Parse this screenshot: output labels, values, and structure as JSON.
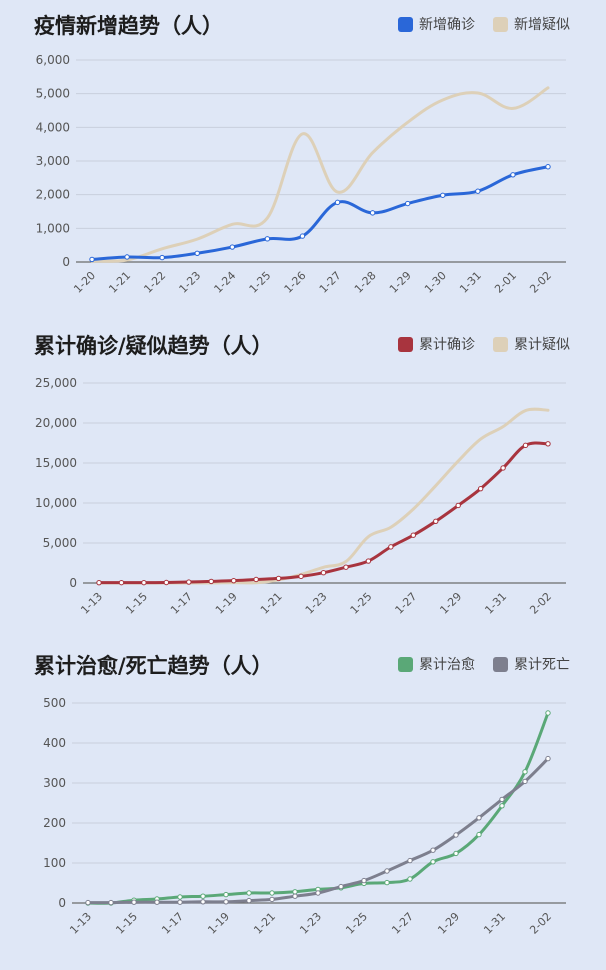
{
  "chart_data": [
    {
      "type": "line",
      "title": "疫情新增趋势（人）",
      "xlabel": "",
      "ylabel": "",
      "ylim": [
        0,
        6000
      ],
      "yticks": [
        0,
        1000,
        2000,
        3000,
        4000,
        5000,
        6000
      ],
      "ytick_labels": [
        "0",
        "1,000",
        "2,000",
        "3,000",
        "4,000",
        "5,000",
        "6,000"
      ],
      "categories": [
        "1-20",
        "1-21",
        "1-22",
        "1-23",
        "1-24",
        "1-25",
        "1-26",
        "1-27",
        "1-28",
        "1-29",
        "1-30",
        "1-31",
        "2-01",
        "2-02"
      ],
      "legend": "top-right",
      "grid": true,
      "series": [
        {
          "name": "新增确诊",
          "color": "#2a67d8",
          "markers": true,
          "values": [
            77,
            149,
            131,
            259,
            444,
            688,
            769,
            1771,
            1459,
            1737,
            1982,
            2102,
            2590,
            2829
          ]
        },
        {
          "name": "新增疑似",
          "color": "#ddd0b8",
          "markers": false,
          "values": [
            27,
            60,
            393,
            680,
            1118,
            1309,
            3806,
            2077,
            3248,
            4148,
            4812,
            5019,
            4562,
            5173
          ]
        }
      ]
    },
    {
      "type": "line",
      "title": "累计确诊/疑似趋势（人）",
      "xlabel": "",
      "ylabel": "",
      "ylim": [
        0,
        25000
      ],
      "yticks": [
        0,
        5000,
        10000,
        15000,
        20000,
        25000
      ],
      "ytick_labels": [
        "0",
        "5,000",
        "10,000",
        "15,000",
        "20,000",
        "25,000"
      ],
      "categories": [
        "1-13",
        "1-14",
        "1-15",
        "1-16",
        "1-17",
        "1-18",
        "1-19",
        "1-20",
        "1-21",
        "1-22",
        "1-23",
        "1-24",
        "1-25",
        "1-26",
        "1-27",
        "1-28",
        "1-29",
        "1-30",
        "1-31",
        "2-01",
        "2-02"
      ],
      "tick_labels": [
        "1-13",
        "1-15",
        "1-17",
        "1-19",
        "1-21",
        "1-23",
        "1-25",
        "1-27",
        "1-29",
        "1-31",
        "2-02"
      ],
      "legend": "top-right",
      "grid": true,
      "series": [
        {
          "name": "累计确诊",
          "color": "#a8343e",
          "markers": true,
          "values": [
            41,
            45,
            45,
            62,
            121,
            198,
            291,
            440,
            571,
            830,
            1287,
            1975,
            2744,
            4515,
            5974,
            7711,
            9692,
            11791,
            14380,
            17205,
            17400
          ]
        },
        {
          "name": "累计疑似",
          "color": "#ddd0b8",
          "markers": false,
          "values": [
            0,
            0,
            0,
            0,
            0,
            0,
            54,
            37,
            393,
            1072,
            1965,
            2684,
            5794,
            6973,
            9239,
            12167,
            15238,
            17988,
            19544,
            21558,
            21600
          ]
        }
      ]
    },
    {
      "type": "line",
      "title": "累计治愈/死亡趋势（人）",
      "xlabel": "",
      "ylabel": "",
      "ylim": [
        0,
        500
      ],
      "yticks": [
        0,
        100,
        200,
        300,
        400,
        500
      ],
      "ytick_labels": [
        "0",
        "100",
        "200",
        "300",
        "400",
        "500"
      ],
      "categories": [
        "1-13",
        "1-14",
        "1-15",
        "1-16",
        "1-17",
        "1-18",
        "1-19",
        "1-20",
        "1-21",
        "1-22",
        "1-23",
        "1-24",
        "1-25",
        "1-26",
        "1-27",
        "1-28",
        "1-29",
        "1-30",
        "1-31",
        "2-01",
        "2-02"
      ],
      "tick_labels": [
        "1-13",
        "1-15",
        "1-17",
        "1-19",
        "1-21",
        "1-23",
        "1-25",
        "1-27",
        "1-29",
        "1-31",
        "2-02"
      ],
      "legend": "top-right",
      "grid": true,
      "series": [
        {
          "name": "累计治愈",
          "color": "#5aa877",
          "markers": true,
          "values": [
            0,
            0,
            7,
            10,
            15,
            17,
            21,
            25,
            25,
            28,
            34,
            38,
            49,
            51,
            60,
            103,
            124,
            171,
            243,
            328,
            475
          ]
        },
        {
          "name": "累计死亡",
          "color": "#7d7f8e",
          "markers": true,
          "values": [
            1,
            1,
            2,
            2,
            2,
            3,
            3,
            6,
            9,
            17,
            25,
            41,
            56,
            80,
            106,
            132,
            170,
            213,
            259,
            304,
            361
          ]
        }
      ]
    }
  ]
}
